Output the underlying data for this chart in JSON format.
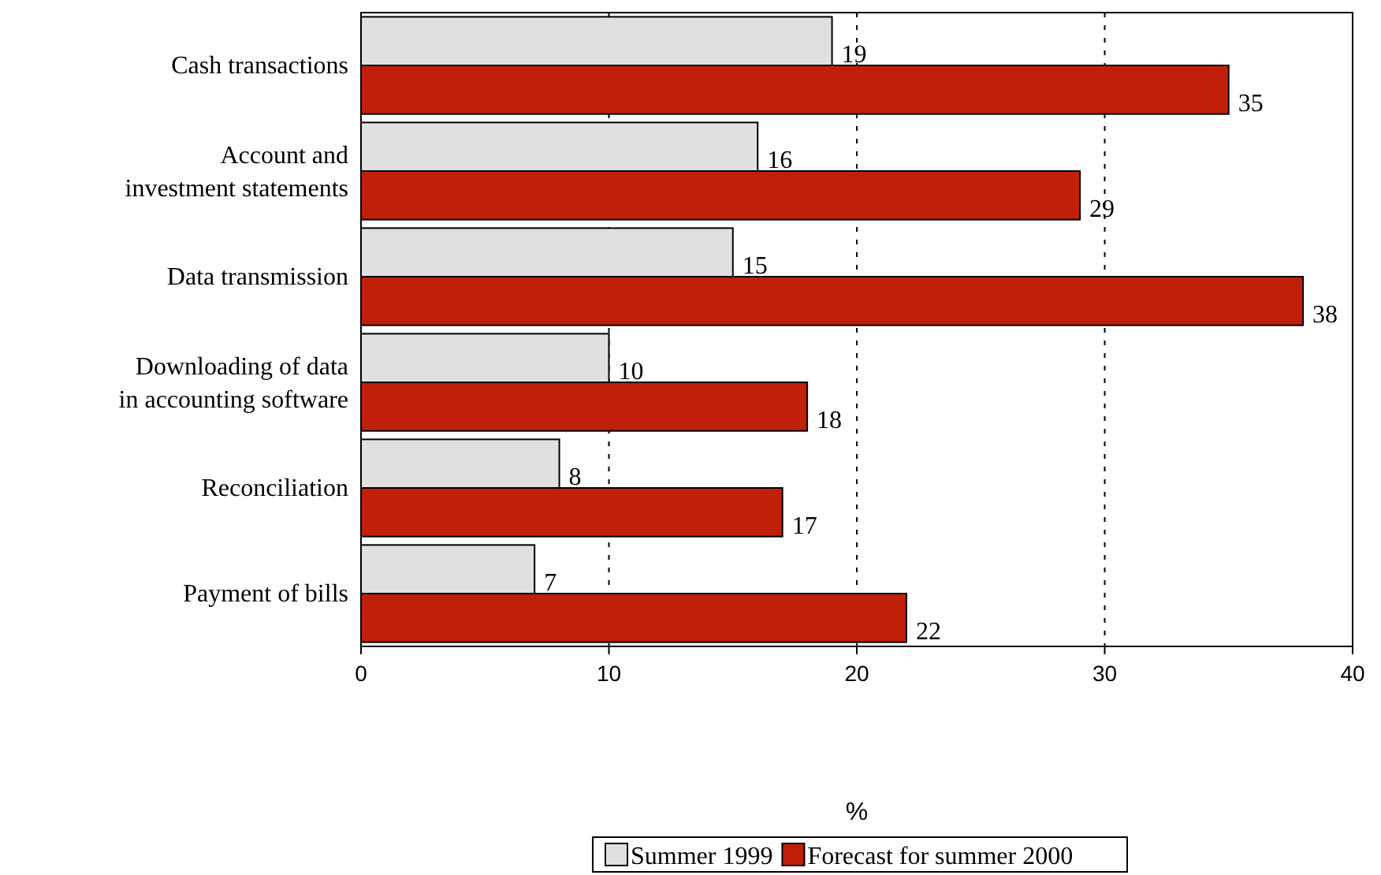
{
  "chart_data": {
    "type": "bar",
    "orientation": "horizontal",
    "xlabel": "%",
    "categories": [
      "Cash transactions",
      "Account and investment statements",
      "Data transmission",
      "Downloading of data in accounting software",
      "Reconciliation",
      "Payment of bills"
    ],
    "series": [
      {
        "name": "Summer 1999",
        "color": "#e0e0e0",
        "values": [
          19,
          16,
          15,
          10,
          8,
          7
        ]
      },
      {
        "name": "Forecast for summer 2000",
        "color": "#c0200a",
        "values": [
          35,
          29,
          38,
          18,
          17,
          22
        ]
      }
    ],
    "xlim": [
      0,
      40
    ],
    "xticks": [
      0,
      10,
      20,
      30,
      40
    ],
    "grid": "x",
    "legend": "bottom",
    "data_labels": true
  }
}
